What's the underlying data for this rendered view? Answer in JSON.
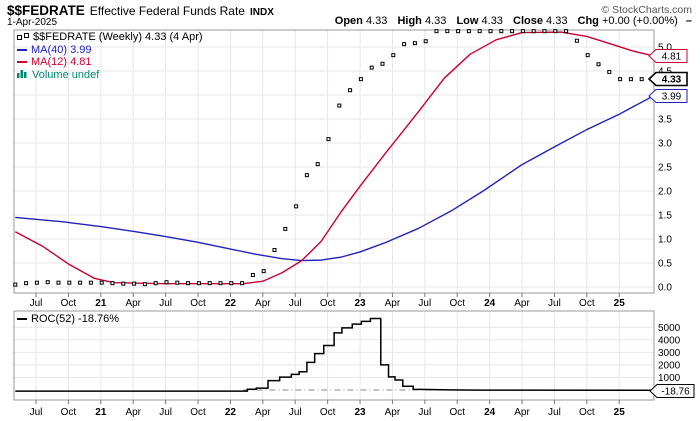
{
  "header": {
    "symbol": "$$FEDRATE",
    "name": "Effective Federal Funds Rate",
    "exchange": "INDX",
    "copyright": "© StockCharts.com",
    "date": "1-Apr-2025",
    "quote": {
      "items": [
        {
          "label": "Open",
          "value": "4.33"
        },
        {
          "label": "High",
          "value": "4.33"
        },
        {
          "label": "Low",
          "value": "4.33"
        },
        {
          "label": "Close",
          "value": "4.33"
        },
        {
          "label": "Chg",
          "value": "+0.00 (+0.00%)"
        }
      ],
      "direction": "–"
    }
  },
  "main_panel": {
    "legend": [
      {
        "label": "$$FEDRATE (Weekly) 4.33 (4 Apr)",
        "color": "#000000",
        "marker": "dots"
      },
      {
        "label": "MA(40) 3.99",
        "color": "#2222bb",
        "marker": "line"
      },
      {
        "label": "MA(12) 4.81",
        "color": "#cc0033",
        "marker": "line"
      },
      {
        "label": "Volume undef",
        "color": "#008877",
        "marker": "bars"
      }
    ],
    "price_boxes": [
      {
        "text": "4.81",
        "color": "#cc0033",
        "value": 4.81,
        "bold": false
      },
      {
        "text": "4.33",
        "color": "#000000",
        "value": 4.33,
        "bold": true
      },
      {
        "text": "3.99",
        "color": "#2222bb",
        "value": 3.99,
        "bold": false
      }
    ]
  },
  "roc_panel": {
    "legend": "ROC(52) -18.76%",
    "box": {
      "text": "-18.76",
      "color": "#000000",
      "value": -18.76
    }
  },
  "x_axis": {
    "ticks": [
      {
        "t": 2020.5,
        "label": "Jul",
        "bold": false
      },
      {
        "t": 2020.75,
        "label": "Oct",
        "bold": false
      },
      {
        "t": 2021.0,
        "label": "21",
        "bold": true
      },
      {
        "t": 2021.25,
        "label": "Apr",
        "bold": false
      },
      {
        "t": 2021.5,
        "label": "Jul",
        "bold": false
      },
      {
        "t": 2021.75,
        "label": "Oct",
        "bold": false
      },
      {
        "t": 2022.0,
        "label": "22",
        "bold": true
      },
      {
        "t": 2022.25,
        "label": "Apr",
        "bold": false
      },
      {
        "t": 2022.5,
        "label": "Jul",
        "bold": false
      },
      {
        "t": 2022.75,
        "label": "Oct",
        "bold": false
      },
      {
        "t": 2023.0,
        "label": "23",
        "bold": true
      },
      {
        "t": 2023.25,
        "label": "Apr",
        "bold": false
      },
      {
        "t": 2023.5,
        "label": "Jul",
        "bold": false
      },
      {
        "t": 2023.75,
        "label": "Oct",
        "bold": false
      },
      {
        "t": 2024.0,
        "label": "24",
        "bold": true
      },
      {
        "t": 2024.25,
        "label": "Apr",
        "bold": false
      },
      {
        "t": 2024.5,
        "label": "Jul",
        "bold": false
      },
      {
        "t": 2024.75,
        "label": "Oct",
        "bold": false
      },
      {
        "t": 2025.0,
        "label": "25",
        "bold": true
      }
    ]
  },
  "chart_data": [
    {
      "type": "line",
      "panel": "price",
      "title": "$$FEDRATE (Weekly) Effective Federal Funds Rate",
      "x_unit": "decimal-year",
      "xlim": [
        2020.33,
        2025.27
      ],
      "ylim": [
        0,
        5.35
      ],
      "grid": true,
      "y_ticks": [
        {
          "v": 5.0,
          "label": "5.0"
        },
        {
          "v": 4.5,
          "label": "4.5"
        },
        {
          "v": 4.0,
          "label": "4.0"
        },
        {
          "v": 3.5,
          "label": "3.5"
        },
        {
          "v": 3.0,
          "label": "3.0"
        },
        {
          "v": 2.5,
          "label": "2.5"
        },
        {
          "v": 2.0,
          "label": "2.0"
        },
        {
          "v": 1.5,
          "label": "1.5"
        },
        {
          "v": 1.0,
          "label": "1.0"
        },
        {
          "v": 0.5,
          "label": "0.5"
        },
        {
          "v": 0.0,
          "label": "0.0"
        }
      ],
      "series": [
        {
          "name": "$$FEDRATE weekly close",
          "style": "dots",
          "color": "#000000",
          "last_value": 4.33,
          "last_date": "4 Apr",
          "x_start": 2020.34,
          "x_step_months": 1,
          "values": [
            0.05,
            0.08,
            0.09,
            0.1,
            0.09,
            0.09,
            0.09,
            0.09,
            0.09,
            0.08,
            0.07,
            0.07,
            0.06,
            0.08,
            0.1,
            0.09,
            0.08,
            0.08,
            0.08,
            0.08,
            0.08,
            0.08,
            0.25,
            0.33,
            0.77,
            1.21,
            1.68,
            2.33,
            2.56,
            3.08,
            3.78,
            4.1,
            4.33,
            4.57,
            4.65,
            4.83,
            5.06,
            5.08,
            5.12,
            5.33,
            5.33,
            5.33,
            5.33,
            5.33,
            5.33,
            5.33,
            5.33,
            5.33,
            5.33,
            5.33,
            5.33,
            5.33,
            5.13,
            4.83,
            4.64,
            4.48,
            4.33,
            4.33,
            4.33,
            4.33
          ]
        },
        {
          "name": "MA(40)",
          "style": "line",
          "color": "#2222bb",
          "last_value": 3.99,
          "points": [
            [
              2020.34,
              1.45
            ],
            [
              2020.7,
              1.36
            ],
            [
              2021.0,
              1.26
            ],
            [
              2021.25,
              1.16
            ],
            [
              2021.5,
              1.05
            ],
            [
              2021.75,
              0.93
            ],
            [
              2022.0,
              0.79
            ],
            [
              2022.2,
              0.68
            ],
            [
              2022.4,
              0.59
            ],
            [
              2022.55,
              0.55
            ],
            [
              2022.7,
              0.56
            ],
            [
              2022.85,
              0.62
            ],
            [
              2023.0,
              0.73
            ],
            [
              2023.2,
              0.93
            ],
            [
              2023.45,
              1.22
            ],
            [
              2023.7,
              1.58
            ],
            [
              2023.95,
              2.0
            ],
            [
              2024.25,
              2.55
            ],
            [
              2024.5,
              2.92
            ],
            [
              2024.75,
              3.28
            ],
            [
              2025.0,
              3.6
            ],
            [
              2025.27,
              3.99
            ]
          ]
        },
        {
          "name": "MA(12)",
          "style": "line",
          "color": "#cc0033",
          "last_value": 4.81,
          "points": [
            [
              2020.34,
              1.15
            ],
            [
              2020.55,
              0.85
            ],
            [
              2020.75,
              0.48
            ],
            [
              2020.95,
              0.18
            ],
            [
              2021.1,
              0.09
            ],
            [
              2021.5,
              0.07
            ],
            [
              2022.1,
              0.07
            ],
            [
              2022.25,
              0.12
            ],
            [
              2022.4,
              0.3
            ],
            [
              2022.55,
              0.55
            ],
            [
              2022.7,
              0.95
            ],
            [
              2022.85,
              1.55
            ],
            [
              2023.0,
              2.1
            ],
            [
              2023.2,
              2.8
            ],
            [
              2023.45,
              3.65
            ],
            [
              2023.65,
              4.35
            ],
            [
              2023.85,
              4.85
            ],
            [
              2024.05,
              5.15
            ],
            [
              2024.25,
              5.3
            ],
            [
              2024.55,
              5.31
            ],
            [
              2024.75,
              5.22
            ],
            [
              2024.95,
              5.05
            ],
            [
              2025.1,
              4.92
            ],
            [
              2025.27,
              4.81
            ]
          ]
        }
      ]
    },
    {
      "type": "line",
      "panel": "roc",
      "title": "ROC(52)",
      "x_unit": "decimal-year",
      "xlim": [
        2020.33,
        2025.27
      ],
      "ylim": [
        -900,
        6100
      ],
      "grid": true,
      "y_ticks": [
        {
          "v": 5000,
          "label": "5000"
        },
        {
          "v": 4000,
          "label": "4000"
        },
        {
          "v": 3000,
          "label": "3000"
        },
        {
          "v": 2000,
          "label": "2000"
        },
        {
          "v": 1000,
          "label": "1000"
        }
      ],
      "zero_line": {
        "from": 2022.1,
        "to": 2024.6
      },
      "series": [
        {
          "name": "ROC(52)",
          "style": "step",
          "color": "#000000",
          "last_value": -18.76,
          "points": [
            [
              2020.34,
              -90
            ],
            [
              2022.13,
              -90
            ],
            [
              2022.13,
              60
            ],
            [
              2022.2,
              60
            ],
            [
              2022.2,
              150
            ],
            [
              2022.29,
              150
            ],
            [
              2022.29,
              750
            ],
            [
              2022.38,
              750
            ],
            [
              2022.38,
              1030
            ],
            [
              2022.47,
              1030
            ],
            [
              2022.47,
              1250
            ],
            [
              2022.53,
              1250
            ],
            [
              2022.53,
              1450
            ],
            [
              2022.59,
              1450
            ],
            [
              2022.59,
              2200
            ],
            [
              2022.65,
              2200
            ],
            [
              2022.65,
              2900
            ],
            [
              2022.72,
              2900
            ],
            [
              2022.72,
              3550
            ],
            [
              2022.8,
              3550
            ],
            [
              2022.8,
              4550
            ],
            [
              2022.86,
              4550
            ],
            [
              2022.86,
              4950
            ],
            [
              2022.94,
              4950
            ],
            [
              2022.94,
              5250
            ],
            [
              2023.01,
              5250
            ],
            [
              2023.01,
              5470
            ],
            [
              2023.08,
              5470
            ],
            [
              2023.08,
              5700
            ],
            [
              2023.16,
              5700
            ],
            [
              2023.16,
              2000
            ],
            [
              2023.22,
              2000
            ],
            [
              2023.22,
              1050
            ],
            [
              2023.27,
              1050
            ],
            [
              2023.27,
              800
            ],
            [
              2023.33,
              800
            ],
            [
              2023.33,
              300
            ],
            [
              2023.41,
              300
            ],
            [
              2023.41,
              60
            ],
            [
              2023.53,
              40
            ],
            [
              2023.68,
              10
            ],
            [
              2023.91,
              -10
            ],
            [
              2025.27,
              -18.76
            ]
          ]
        }
      ]
    }
  ]
}
